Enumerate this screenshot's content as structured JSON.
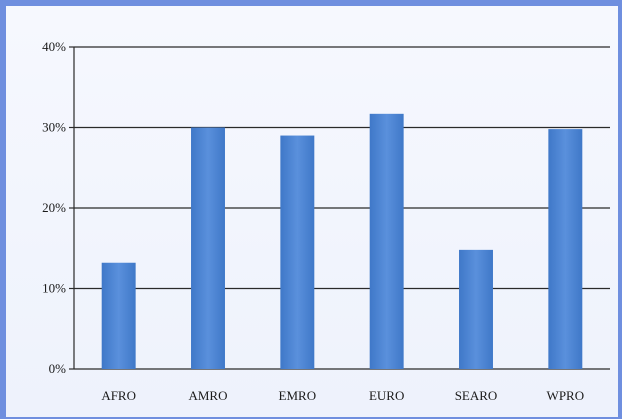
{
  "chart_data": {
    "type": "bar",
    "categories": [
      "AFRO",
      "AMRO",
      "EMRO",
      "EURO",
      "SEARO",
      "WPRO"
    ],
    "values": [
      13.2,
      30.0,
      29.0,
      31.7,
      14.8,
      29.8
    ],
    "ylim": [
      0,
      40
    ],
    "yticks": [
      0,
      10,
      20,
      30,
      40
    ],
    "ytick_labels": [
      "0%",
      "10%",
      "20%",
      "30%",
      "40%"
    ],
    "grid": true,
    "colors": {
      "bar": "#3f78c8",
      "bar_top": "#5a90dc",
      "grid": "#2a2a2a",
      "frame": "#6f8fdf"
    }
  }
}
